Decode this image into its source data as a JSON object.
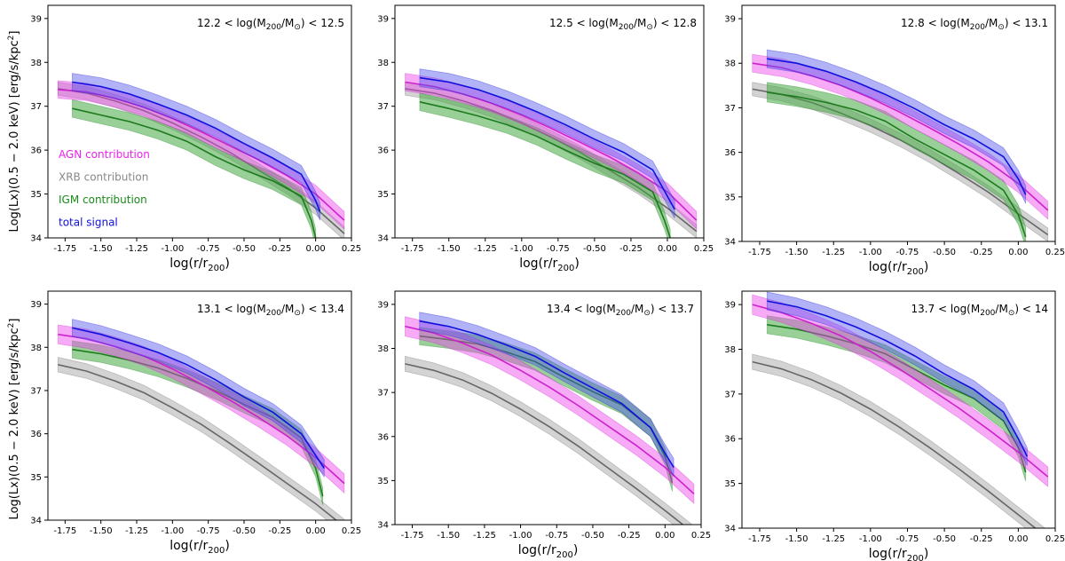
{
  "figure": {
    "ylabel_text": "Log(Lx)(0.5 − 2.0 keV) [erg/s/kpc",
    "ylabel_sup": "2",
    "ylabel_close": "]",
    "xlabel_main": "log(r/r",
    "xlabel_sub": "200",
    "xlabel_close": ")"
  },
  "legend": {
    "entries": [
      {
        "label": "AGN contribution",
        "color": "#ee22ee"
      },
      {
        "label": "XRB contribution",
        "color": "#888888"
      },
      {
        "label": "IGM contribution",
        "color": "#1a8a1a"
      },
      {
        "label": "total signal",
        "color": "#1010dd"
      }
    ]
  },
  "colors": {
    "agn_line": "#cc22cc",
    "agn_band": "#ee44ee",
    "xrb_line": "#666666",
    "xrb_band": "#bbbbbb",
    "igm_line": "#1d7a1d",
    "igm_band": "#44aa44",
    "tot_line": "#1010dd",
    "tot_band": "#5555ee"
  },
  "chart_data": [
    {
      "type": "line",
      "title": "12.2 < log(M200/M⊙) < 12.5",
      "title_parts": {
        "lo": "12.2",
        "hi": "12.5"
      },
      "xlim": [
        -1.87,
        0.25
      ],
      "ylim": [
        34,
        39.3
      ],
      "xticks": [
        "-1.75",
        "-1.50",
        "-1.25",
        "-1.00",
        "-0.75",
        "-0.50",
        "-0.25",
        "0.00",
        "0.25"
      ],
      "xtick_values": [
        -1.75,
        -1.5,
        -1.25,
        -1.0,
        -0.75,
        -0.5,
        -0.25,
        0.0,
        0.25
      ],
      "yticks": [
        "34",
        "35",
        "36",
        "37",
        "38",
        "39"
      ],
      "ytick_values": [
        34,
        35,
        36,
        37,
        38,
        39
      ],
      "series": [
        {
          "name": "AGN contribution",
          "key": "agn",
          "halfwidth": 0.2,
          "x": [
            -1.8,
            -1.6,
            -1.4,
            -1.2,
            -1.0,
            -0.8,
            -0.6,
            -0.4,
            -0.2,
            0.0,
            0.2
          ],
          "y": [
            37.38,
            37.33,
            37.18,
            36.98,
            36.72,
            36.42,
            36.1,
            35.78,
            35.42,
            35.0,
            34.4
          ]
        },
        {
          "name": "XRB contribution",
          "key": "xrb",
          "halfwidth": 0.15,
          "x": [
            -1.8,
            -1.6,
            -1.4,
            -1.2,
            -1.0,
            -0.8,
            -0.6,
            -0.4,
            -0.2,
            0.0,
            0.2
          ],
          "y": [
            37.4,
            37.3,
            37.12,
            36.9,
            36.62,
            36.3,
            35.95,
            35.55,
            35.15,
            34.68,
            34.1
          ]
        },
        {
          "name": "IGM contribution",
          "key": "igm",
          "halfwidth": 0.2,
          "x": [
            -1.7,
            -1.5,
            -1.3,
            -1.1,
            -0.9,
            -0.7,
            -0.5,
            -0.3,
            -0.1,
            -0.03,
            0.0
          ],
          "y": [
            36.95,
            36.8,
            36.65,
            36.45,
            36.2,
            35.85,
            35.55,
            35.3,
            34.95,
            34.4,
            34.0
          ]
        },
        {
          "name": "total signal",
          "key": "tot",
          "halfwidth": 0.2,
          "x": [
            -1.7,
            -1.5,
            -1.3,
            -1.1,
            -0.9,
            -0.7,
            -0.5,
            -0.3,
            -0.1,
            0.0,
            0.03
          ],
          "y": [
            37.55,
            37.45,
            37.28,
            37.05,
            36.8,
            36.5,
            36.15,
            35.82,
            35.45,
            34.85,
            34.6
          ]
        }
      ]
    },
    {
      "type": "line",
      "title": "12.5 < log(M200/M⊙) < 12.8",
      "title_parts": {
        "lo": "12.5",
        "hi": "12.8"
      },
      "xlim": [
        -1.87,
        0.25
      ],
      "ylim": [
        34,
        39.3
      ],
      "xticks": [
        "-1.75",
        "-1.50",
        "-1.25",
        "-1.00",
        "-0.75",
        "-0.50",
        "-0.25",
        "0.00",
        "0.25"
      ],
      "xtick_values": [
        -1.75,
        -1.5,
        -1.25,
        -1.0,
        -0.75,
        -0.5,
        -0.25,
        0.0,
        0.25
      ],
      "yticks": [
        "34",
        "35",
        "36",
        "37",
        "38",
        "39"
      ],
      "ytick_values": [
        34,
        35,
        36,
        37,
        38,
        39
      ],
      "series": [
        {
          "name": "AGN contribution",
          "key": "agn",
          "halfwidth": 0.2,
          "x": [
            -1.8,
            -1.6,
            -1.4,
            -1.2,
            -1.0,
            -0.8,
            -0.6,
            -0.4,
            -0.2,
            0.0,
            0.2
          ],
          "y": [
            37.55,
            37.45,
            37.28,
            37.06,
            36.8,
            36.5,
            36.18,
            35.85,
            35.48,
            35.05,
            34.4
          ]
        },
        {
          "name": "XRB contribution",
          "key": "xrb",
          "halfwidth": 0.15,
          "x": [
            -1.8,
            -1.6,
            -1.4,
            -1.2,
            -1.0,
            -0.8,
            -0.6,
            -0.4,
            -0.2,
            0.0,
            0.2
          ],
          "y": [
            37.4,
            37.3,
            37.12,
            36.9,
            36.62,
            36.3,
            35.95,
            35.55,
            35.15,
            34.68,
            34.15
          ]
        },
        {
          "name": "IGM contribution",
          "key": "igm",
          "halfwidth": 0.2,
          "x": [
            -1.7,
            -1.5,
            -1.3,
            -1.1,
            -0.9,
            -0.7,
            -0.5,
            -0.3,
            -0.1,
            -0.02,
            0.02
          ],
          "y": [
            37.1,
            36.95,
            36.78,
            36.58,
            36.32,
            36.0,
            35.7,
            35.45,
            35.05,
            34.4,
            34.0
          ]
        },
        {
          "name": "total signal",
          "key": "tot",
          "halfwidth": 0.2,
          "x": [
            -1.7,
            -1.5,
            -1.3,
            -1.1,
            -0.9,
            -0.7,
            -0.5,
            -0.3,
            -0.1,
            0.0,
            0.05
          ],
          "y": [
            37.65,
            37.55,
            37.38,
            37.15,
            36.88,
            36.58,
            36.25,
            35.95,
            35.55,
            34.95,
            34.65
          ]
        }
      ]
    },
    {
      "type": "line",
      "title": "12.8 < log(M200/M⊙) < 13.1",
      "title_parts": {
        "lo": "12.8",
        "hi": "13.1"
      },
      "xlim": [
        -1.87,
        0.25
      ],
      "ylim": [
        34,
        39.3
      ],
      "xticks": [
        "-1.75",
        "-1.50",
        "-1.25",
        "-1.00",
        "-0.75",
        "-0.50",
        "-0.25",
        "0.00",
        "0.25"
      ],
      "xtick_values": [
        -1.75,
        -1.5,
        -1.25,
        -1.0,
        -0.75,
        -0.5,
        -0.25,
        0.0,
        0.25
      ],
      "yticks": [
        "34",
        "35",
        "36",
        "37",
        "38",
        "39"
      ],
      "ytick_values": [
        34,
        35,
        36,
        37,
        38,
        39
      ],
      "series": [
        {
          "name": "AGN contribution",
          "key": "agn",
          "halfwidth": 0.2,
          "x": [
            -1.8,
            -1.6,
            -1.4,
            -1.2,
            -1.0,
            -0.8,
            -0.6,
            -0.4,
            -0.2,
            0.0,
            0.2
          ],
          "y": [
            38.0,
            37.9,
            37.72,
            37.5,
            37.22,
            36.9,
            36.55,
            36.18,
            35.78,
            35.3,
            34.7
          ]
        },
        {
          "name": "XRB contribution",
          "key": "xrb",
          "halfwidth": 0.15,
          "x": [
            -1.8,
            -1.6,
            -1.4,
            -1.2,
            -1.0,
            -0.8,
            -0.6,
            -0.4,
            -0.2,
            0.0,
            0.2
          ],
          "y": [
            37.42,
            37.3,
            37.12,
            36.88,
            36.6,
            36.28,
            35.92,
            35.52,
            35.1,
            34.62,
            34.15
          ]
        },
        {
          "name": "IGM contribution",
          "key": "igm",
          "halfwidth": 0.22,
          "x": [
            -1.7,
            -1.5,
            -1.3,
            -1.1,
            -0.9,
            -0.7,
            -0.5,
            -0.3,
            -0.1,
            0.0,
            0.05
          ],
          "y": [
            37.35,
            37.25,
            37.12,
            36.95,
            36.7,
            36.3,
            35.95,
            35.6,
            35.15,
            34.6,
            34.1
          ]
        },
        {
          "name": "total signal",
          "key": "tot",
          "halfwidth": 0.2,
          "x": [
            -1.7,
            -1.5,
            -1.3,
            -1.1,
            -0.9,
            -0.7,
            -0.5,
            -0.3,
            -0.1,
            0.0,
            0.05
          ],
          "y": [
            38.1,
            38.0,
            37.82,
            37.58,
            37.3,
            36.98,
            36.62,
            36.3,
            35.9,
            35.4,
            35.05
          ]
        }
      ]
    },
    {
      "type": "line",
      "title": "13.1 < log(M200/M⊙) < 13.4",
      "title_parts": {
        "lo": "13.1",
        "hi": "13.4"
      },
      "xlim": [
        -1.87,
        0.25
      ],
      "ylim": [
        34,
        39.3
      ],
      "xticks": [
        "-1.75",
        "-1.50",
        "-1.25",
        "-1.00",
        "-0.75",
        "-0.50",
        "-0.25",
        "0.00",
        "0.25"
      ],
      "xtick_values": [
        -1.75,
        -1.5,
        -1.25,
        -1.0,
        -0.75,
        -0.5,
        -0.25,
        0.0,
        0.25
      ],
      "yticks": [
        "34",
        "35",
        "36",
        "37",
        "38",
        "39"
      ],
      "ytick_values": [
        34,
        35,
        36,
        37,
        38,
        39
      ],
      "series": [
        {
          "name": "AGN contribution",
          "key": "agn",
          "halfwidth": 0.22,
          "x": [
            -1.8,
            -1.6,
            -1.4,
            -1.2,
            -1.0,
            -0.8,
            -0.6,
            -0.4,
            -0.2,
            0.0,
            0.2
          ],
          "y": [
            38.3,
            38.2,
            38.02,
            37.8,
            37.5,
            37.15,
            36.78,
            36.38,
            35.95,
            35.45,
            34.85
          ]
        },
        {
          "name": "XRB contribution",
          "key": "xrb",
          "halfwidth": 0.17,
          "x": [
            -1.8,
            -1.6,
            -1.4,
            -1.2,
            -1.0,
            -0.8,
            -0.6,
            -0.4,
            -0.2,
            0.0,
            0.2
          ],
          "y": [
            37.6,
            37.45,
            37.22,
            36.95,
            36.6,
            36.22,
            35.78,
            35.32,
            34.85,
            34.38,
            33.85
          ]
        },
        {
          "name": "IGM contribution",
          "key": "igm",
          "halfwidth": 0.2,
          "x": [
            -1.7,
            -1.5,
            -1.3,
            -1.1,
            -0.9,
            -0.7,
            -0.5,
            -0.3,
            -0.1,
            0.0,
            0.05
          ],
          "y": [
            37.95,
            37.85,
            37.7,
            37.52,
            37.28,
            37.0,
            36.68,
            36.38,
            35.9,
            35.2,
            34.55
          ]
        },
        {
          "name": "total signal",
          "key": "tot",
          "halfwidth": 0.2,
          "x": [
            -1.7,
            -1.5,
            -1.3,
            -1.1,
            -0.9,
            -0.7,
            -0.5,
            -0.3,
            -0.1,
            0.0,
            0.06
          ],
          "y": [
            38.45,
            38.3,
            38.1,
            37.88,
            37.6,
            37.25,
            36.85,
            36.5,
            36.0,
            35.5,
            35.2
          ]
        }
      ]
    },
    {
      "type": "line",
      "title": "13.4 < log(M200/M⊙) < 13.7",
      "title_parts": {
        "lo": "13.4",
        "hi": "13.7"
      },
      "xlim": [
        -1.87,
        0.25
      ],
      "ylim": [
        34,
        39.3
      ],
      "xticks": [
        "-1.75",
        "-1.50",
        "-1.25",
        "-1.00",
        "-0.75",
        "-0.50",
        "-0.25",
        "0.00",
        "0.25"
      ],
      "xtick_values": [
        -1.75,
        -1.5,
        -1.25,
        -1.0,
        -0.75,
        -0.5,
        -0.25,
        0.0,
        0.25
      ],
      "yticks": [
        "34",
        "35",
        "36",
        "37",
        "38",
        "39"
      ],
      "ytick_values": [
        34,
        35,
        36,
        37,
        38,
        39
      ],
      "series": [
        {
          "name": "AGN contribution",
          "key": "agn",
          "halfwidth": 0.22,
          "x": [
            -1.8,
            -1.6,
            -1.4,
            -1.2,
            -1.0,
            -0.8,
            -0.6,
            -0.4,
            -0.2,
            0.0,
            0.2
          ],
          "y": [
            38.5,
            38.35,
            38.12,
            37.85,
            37.5,
            37.12,
            36.7,
            36.25,
            35.8,
            35.3,
            34.7
          ]
        },
        {
          "name": "XRB contribution",
          "key": "xrb",
          "halfwidth": 0.17,
          "x": [
            -1.8,
            -1.6,
            -1.4,
            -1.2,
            -1.0,
            -0.8,
            -0.6,
            -0.4,
            -0.2,
            0.0,
            0.2
          ],
          "y": [
            37.65,
            37.5,
            37.28,
            36.98,
            36.62,
            36.22,
            35.78,
            35.3,
            34.82,
            34.32,
            33.8
          ]
        },
        {
          "name": "IGM contribution",
          "key": "igm",
          "halfwidth": 0.2,
          "x": [
            -1.7,
            -1.5,
            -1.3,
            -1.1,
            -0.9,
            -0.7,
            -0.5,
            -0.3,
            -0.1,
            0.0,
            0.05
          ],
          "y": [
            38.28,
            38.2,
            38.1,
            37.92,
            37.7,
            37.35,
            37.02,
            36.72,
            36.2,
            35.55,
            34.95
          ]
        },
        {
          "name": "total signal",
          "key": "tot",
          "halfwidth": 0.2,
          "x": [
            -1.7,
            -1.5,
            -1.3,
            -1.1,
            -0.9,
            -0.7,
            -0.5,
            -0.3,
            -0.1,
            0.0,
            0.06
          ],
          "y": [
            38.62,
            38.5,
            38.32,
            38.08,
            37.82,
            37.45,
            37.1,
            36.75,
            36.2,
            35.62,
            35.3
          ]
        }
      ]
    },
    {
      "type": "line",
      "title": "13.7 < log(M200/M⊙) < 14",
      "title_parts": {
        "lo": "13.7",
        "hi": "14"
      },
      "xlim": [
        -1.87,
        0.25
      ],
      "ylim": [
        34,
        39.3
      ],
      "xticks": [
        "-1.75",
        "-1.50",
        "-1.25",
        "-1.00",
        "-0.75",
        "-0.50",
        "-0.25",
        "0.00",
        "0.25"
      ],
      "xtick_values": [
        -1.75,
        -1.5,
        -1.25,
        -1.0,
        -0.75,
        -0.5,
        -0.25,
        0.0,
        0.25
      ],
      "yticks": [
        "34",
        "35",
        "36",
        "37",
        "38",
        "39"
      ],
      "ytick_values": [
        34,
        35,
        36,
        37,
        38,
        39
      ],
      "series": [
        {
          "name": "AGN contribution",
          "key": "agn",
          "halfwidth": 0.22,
          "x": [
            -1.8,
            -1.6,
            -1.4,
            -1.2,
            -1.0,
            -0.8,
            -0.6,
            -0.4,
            -0.2,
            0.0,
            0.2
          ],
          "y": [
            39.0,
            38.82,
            38.58,
            38.3,
            37.95,
            37.55,
            37.12,
            36.68,
            36.2,
            35.7,
            35.15
          ]
        },
        {
          "name": "XRB contribution",
          "key": "xrb",
          "halfwidth": 0.17,
          "x": [
            -1.8,
            -1.6,
            -1.4,
            -1.2,
            -1.0,
            -0.8,
            -0.6,
            -0.4,
            -0.2,
            0.0,
            0.2
          ],
          "y": [
            37.72,
            37.56,
            37.32,
            37.02,
            36.66,
            36.25,
            35.8,
            35.32,
            34.82,
            34.3,
            33.78
          ]
        },
        {
          "name": "IGM contribution",
          "key": "igm",
          "halfwidth": 0.2,
          "x": [
            -1.7,
            -1.5,
            -1.3,
            -1.1,
            -0.9,
            -0.7,
            -0.5,
            -0.3,
            -0.1,
            0.0,
            0.05
          ],
          "y": [
            38.55,
            38.45,
            38.3,
            38.12,
            37.9,
            37.55,
            37.2,
            36.9,
            36.4,
            35.8,
            35.25
          ]
        },
        {
          "name": "total signal",
          "key": "tot",
          "halfwidth": 0.2,
          "x": [
            -1.7,
            -1.5,
            -1.3,
            -1.1,
            -0.9,
            -0.7,
            -0.5,
            -0.3,
            -0.1,
            0.0,
            0.06
          ],
          "y": [
            39.08,
            38.95,
            38.75,
            38.5,
            38.2,
            37.85,
            37.45,
            37.1,
            36.6,
            36.0,
            35.6
          ]
        }
      ]
    }
  ]
}
